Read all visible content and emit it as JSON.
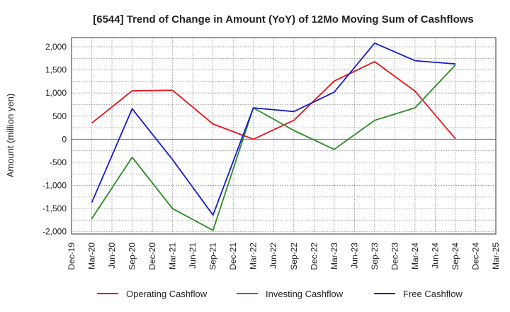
{
  "chart_data": {
    "type": "line",
    "title": "[6544]  Trend of Change in Amount (YoY) of 12Mo Moving Sum of Cashflows",
    "xlabel": "",
    "ylabel": "Amount (million yen)",
    "ylim": [
      -2050,
      2200
    ],
    "yticks": [
      2000,
      1500,
      1000,
      500,
      0,
      -500,
      -1000,
      -1500,
      -2000
    ],
    "ytick_labels": [
      "2,000",
      "1,500",
      "1,000",
      "500",
      "0",
      "-500",
      "-1,000",
      "-1,500",
      "-2,000"
    ],
    "categories": [
      "Dec-19",
      "Mar-20",
      "Jun-20",
      "Sep-20",
      "Dec-20",
      "Mar-21",
      "Jun-21",
      "Sep-21",
      "Dec-21",
      "Mar-22",
      "Jun-22",
      "Sep-22",
      "Dec-22",
      "Mar-23",
      "Jun-23",
      "Sep-23",
      "Dec-23",
      "Mar-24",
      "Jun-24",
      "Sep-24",
      "Dec-24",
      "Mar-25"
    ],
    "grid": true,
    "legend_position": "bottom",
    "series": [
      {
        "name": "Operating Cashflow",
        "color": "#e8141b",
        "points": [
          [
            "Mar-20",
            350
          ],
          [
            "Sep-20",
            1050
          ],
          [
            "Mar-21",
            1060
          ],
          [
            "Sep-21",
            330
          ],
          [
            "Mar-22",
            0
          ],
          [
            "Sep-22",
            410
          ],
          [
            "Mar-23",
            1260
          ],
          [
            "Sep-23",
            1680
          ],
          [
            "Mar-24",
            1040
          ],
          [
            "Sep-24",
            10
          ]
        ]
      },
      {
        "name": "Investing Cashflow",
        "color": "#2a8a24",
        "points": [
          [
            "Mar-20",
            -1720
          ],
          [
            "Sep-20",
            -390
          ],
          [
            "Mar-21",
            -1500
          ],
          [
            "Sep-21",
            -1970
          ],
          [
            "Mar-22",
            680
          ],
          [
            "Sep-22",
            190
          ],
          [
            "Mar-23",
            -220
          ],
          [
            "Sep-23",
            410
          ],
          [
            "Mar-24",
            680
          ],
          [
            "Sep-24",
            1610
          ]
        ]
      },
      {
        "name": "Free Cashflow",
        "color": "#1418d0",
        "points": [
          [
            "Mar-20",
            -1370
          ],
          [
            "Sep-20",
            660
          ],
          [
            "Mar-21",
            -440
          ],
          [
            "Sep-21",
            -1640
          ],
          [
            "Mar-22",
            680
          ],
          [
            "Sep-22",
            600
          ],
          [
            "Mar-23",
            1020
          ],
          [
            "Sep-23",
            2080
          ],
          [
            "Mar-24",
            1700
          ],
          [
            "Sep-24",
            1630
          ]
        ]
      }
    ]
  }
}
